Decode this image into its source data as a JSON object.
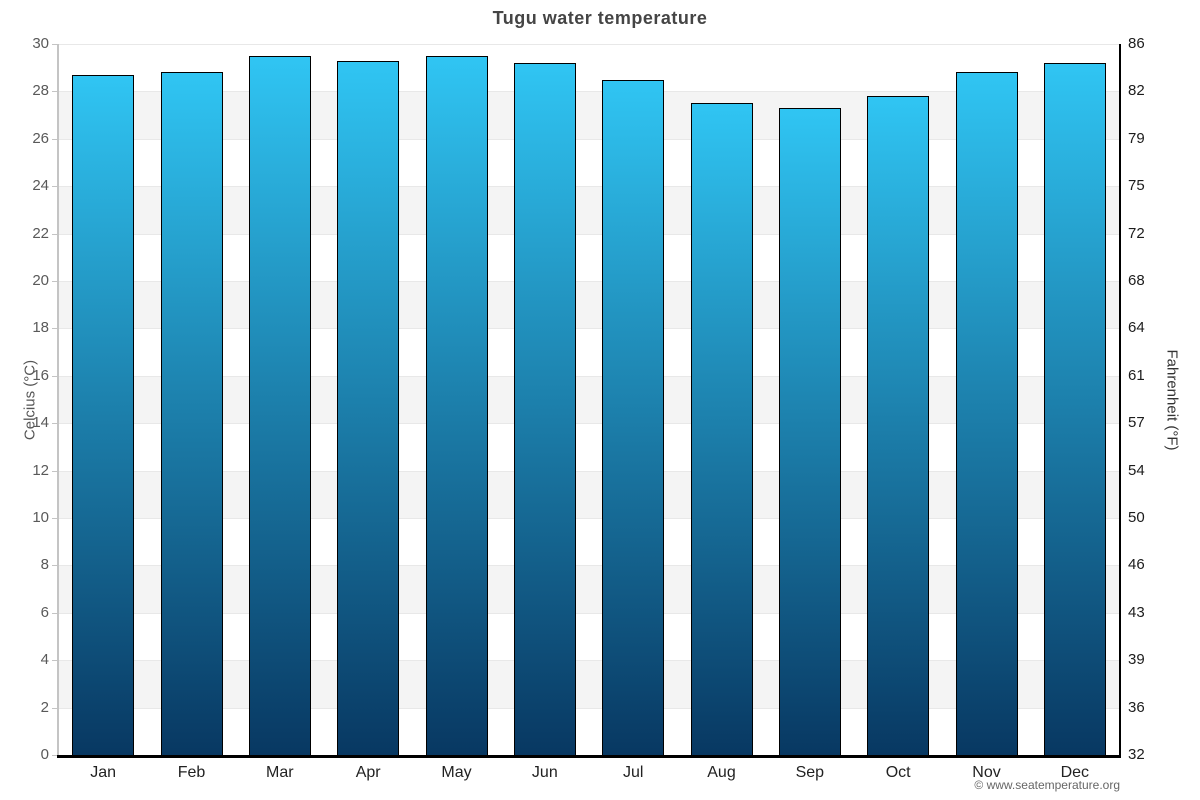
{
  "title": "Tugu water temperature",
  "axes": {
    "left_label": "Celcius (°C)",
    "right_label": "Fahrenheit (°F)"
  },
  "footer": {
    "copyright": "© www.seatemperature.org"
  },
  "chart_data": {
    "type": "bar",
    "title": "Tugu water temperature",
    "categories": [
      "Jan",
      "Feb",
      "Mar",
      "Apr",
      "May",
      "Jun",
      "Jul",
      "Aug",
      "Sep",
      "Oct",
      "Nov",
      "Dec"
    ],
    "values": [
      28.7,
      28.8,
      29.5,
      29.3,
      29.5,
      29.2,
      28.5,
      27.5,
      27.3,
      27.8,
      28.8,
      29.2
    ],
    "unit": "°C",
    "ylabel": "Celcius (°C)",
    "y2label": "Fahrenheit (°F)",
    "ylim": [
      0,
      30
    ],
    "ytick_step": 2,
    "celsius_ticks": [
      30,
      28,
      26,
      24,
      22,
      20,
      18,
      16,
      14,
      12,
      10,
      8,
      6,
      4,
      2,
      0
    ],
    "fahrenheit_ticks": [
      86,
      82,
      79,
      75,
      72,
      68,
      64,
      61,
      57,
      54,
      50,
      46,
      43,
      39,
      36,
      32
    ],
    "grid": "alternating-horizontal-bands",
    "legend": "none",
    "colors": {
      "bar_gradient_top": "#30c5f3",
      "bar_gradient_bottom": "#083862",
      "bar_border": "#000000",
      "band_gray": "#f4f4f4",
      "band_white": "#ffffff",
      "gridline": "#e8e8e8",
      "axis_line_left": "#c4c4c4",
      "axis_line_right": "#000000",
      "axis_line_bottom": "#000000",
      "tick_text_left": "#595959",
      "tick_text_right": "#1c1c1c",
      "month_text": "#222222",
      "title_text": "#454545",
      "copyright_text": "#666666"
    }
  }
}
